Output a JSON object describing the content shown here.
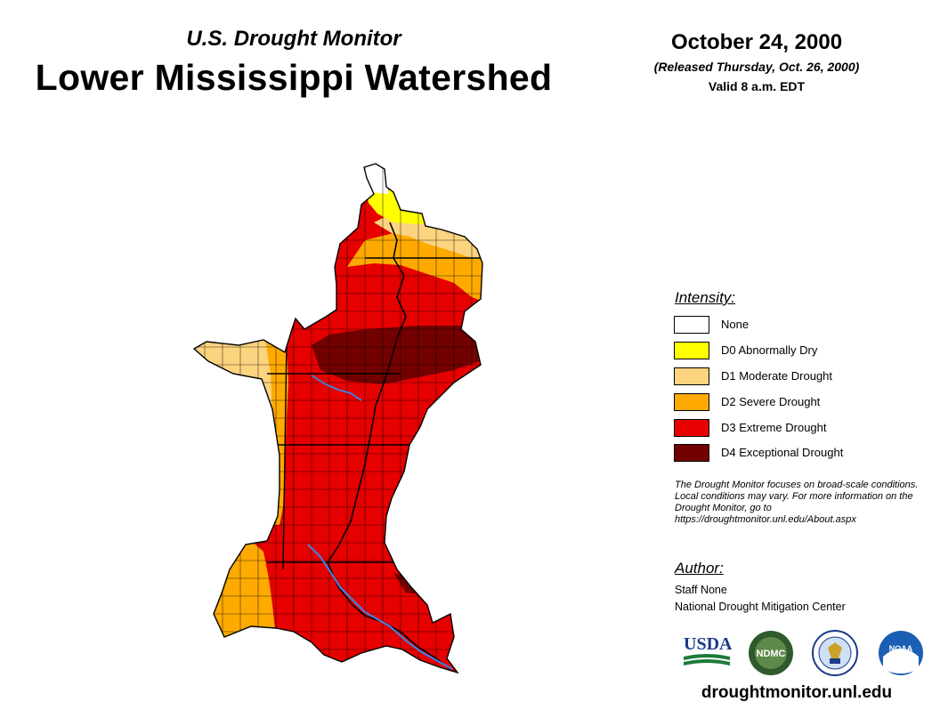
{
  "header": {
    "subtitle": "U.S. Drought Monitor",
    "region_title": "Lower Mississippi Watershed",
    "map_date": "October 24, 2000",
    "released": "(Released Thursday, Oct. 26, 2000)",
    "valid": "Valid 8 a.m. EDT"
  },
  "legend": {
    "title": "Intensity:",
    "items": [
      {
        "label": "None",
        "color": "#ffffff"
      },
      {
        "label": "D0 Abnormally Dry",
        "color": "#ffff00"
      },
      {
        "label": "D1 Moderate Drought",
        "color": "#fcd37f"
      },
      {
        "label": "D2 Severe Drought",
        "color": "#ffaa00"
      },
      {
        "label": "D3 Extreme Drought",
        "color": "#e60000"
      },
      {
        "label": "D4 Exceptional Drought",
        "color": "#730000"
      }
    ]
  },
  "note": "The Drought Monitor focuses on broad-scale conditions. Local conditions may vary. For more information on the Drought Monitor, go to https://droughtmonitor.unl.edu/About.aspx",
  "author": {
    "heading": "Author:",
    "name": "Staff None",
    "organization": "National Drought Mitigation Center"
  },
  "logos": {
    "usda": "USDA",
    "ndmc": "NDMC",
    "noaa": "NOAA"
  },
  "footer": {
    "website": "droughtmonitor.unl.edu"
  },
  "colors": {
    "river": "#3a86e8",
    "county_line": "#000000"
  }
}
